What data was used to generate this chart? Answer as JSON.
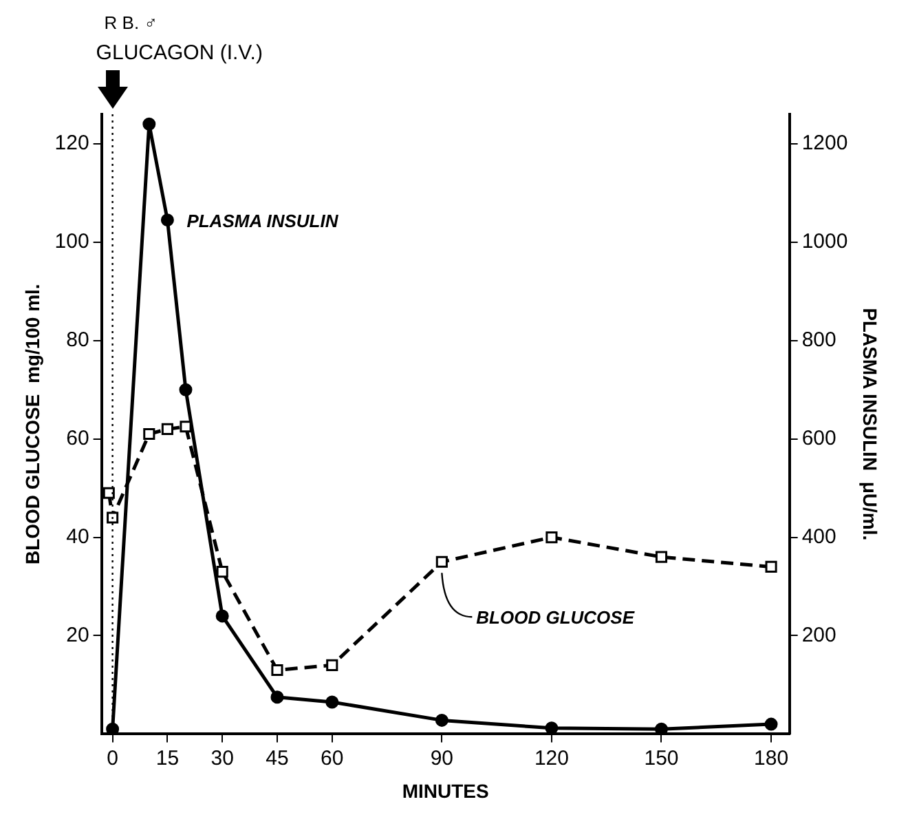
{
  "chart_data": {
    "type": "line",
    "xlabel": "MINUTES",
    "ylabel": "BLOOD GLUCOSE  mg/100 ml.",
    "y2label": "PLASMA INSULIN  μU/ml.",
    "annotations": [
      "R B. ♂"
    ],
    "ref_lines": [
      {
        "axis": "x",
        "value": 0,
        "label": "GLUCAGON (I.V.)",
        "line_style": "dotted",
        "color": "#000000"
      }
    ],
    "series": [
      {
        "name": "BLOOD GLUCOSE",
        "color": "#000000",
        "marker": "square",
        "line_style": "dashed",
        "x": [
          -1,
          0,
          10,
          15,
          20,
          30,
          45,
          60,
          90,
          120,
          150,
          180
        ],
        "values": [
          49,
          44,
          61,
          62,
          62.5,
          33,
          13,
          14,
          35,
          40,
          36,
          34
        ]
      },
      {
        "name": "PLASMA INSULIN",
        "color": "#000000",
        "marker": "circle",
        "line_style": "solid",
        "axis": "y2",
        "x": [
          0,
          10,
          15,
          20,
          30,
          45,
          60,
          90,
          120,
          150,
          180
        ],
        "values": [
          10,
          1240,
          1045,
          700,
          240,
          75,
          65,
          28,
          12,
          10,
          20
        ]
      }
    ],
    "xlim": [
      -3,
      185
    ],
    "xticks": [
      0,
      15,
      30,
      45,
      60,
      90,
      120,
      150,
      180
    ],
    "ylim": [
      0,
      126
    ],
    "yticks": [
      20,
      40,
      60,
      80,
      100,
      120
    ],
    "y2lim": [
      0,
      1260
    ],
    "y2ticks": [
      200,
      400,
      600,
      800,
      1000,
      1200
    ],
    "grid": false,
    "legend": false
  }
}
